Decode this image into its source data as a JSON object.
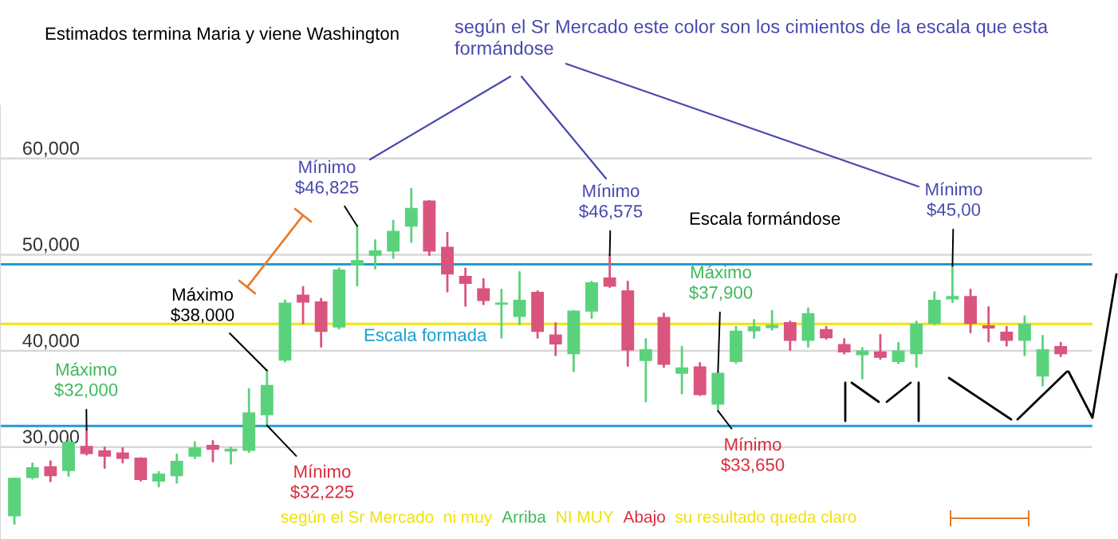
{
  "chart_data": {
    "type": "candlestick",
    "title": "Estimados termina Maria y viene Washington",
    "categories": [
      null,
      null,
      null,
      null,
      null,
      null,
      null,
      null,
      null,
      null,
      null,
      null,
      null,
      null,
      null,
      null,
      null,
      null,
      null,
      null,
      null,
      null,
      null,
      null,
      null,
      null,
      null,
      null,
      null,
      null,
      null,
      null,
      null,
      null,
      null,
      null,
      null,
      null,
      null,
      null,
      null,
      null,
      null,
      null,
      null,
      null,
      null,
      null,
      null,
      null,
      null,
      null,
      null,
      null,
      null,
      null,
      null,
      null,
      null
    ],
    "ohlc": [
      [
        22870,
        26740,
        22040,
        26740
      ],
      [
        26850,
        28290,
        26740,
        27850
      ],
      [
        27950,
        28510,
        26460,
        27020
      ],
      [
        27570,
        30720,
        27020,
        30500
      ],
      [
        30060,
        31820,
        29230,
        29340
      ],
      [
        29610,
        29940,
        27850,
        29060
      ],
      [
        29390,
        29890,
        28400,
        28840
      ],
      [
        28840,
        28840,
        26520,
        26630
      ],
      [
        26460,
        27400,
        25910,
        27180
      ],
      [
        27020,
        29230,
        26300,
        28510
      ],
      [
        29060,
        30500,
        28840,
        29890
      ],
      [
        30170,
        30610,
        28510,
        29780
      ],
      [
        29610,
        29940,
        28290,
        29780
      ],
      [
        29670,
        36020,
        29500,
        33540
      ],
      [
        33370,
        37960,
        32260,
        36410
      ],
      [
        39060,
        45250,
        38900,
        44970
      ],
      [
        45800,
        46630,
        42870,
        45080
      ],
      [
        45080,
        45410,
        40440,
        42040
      ],
      [
        42490,
        48560,
        42320,
        48400
      ],
      [
        48950,
        52980,
        46800,
        49390
      ],
      [
        49950,
        51490,
        48560,
        50390
      ],
      [
        50390,
        53540,
        49670,
        52430
      ],
      [
        52980,
        56850,
        51330,
        54810
      ],
      [
        55580,
        55580,
        49950,
        50390
      ],
      [
        50770,
        52270,
        46190,
        48010
      ],
      [
        47740,
        48560,
        44700,
        47020
      ],
      [
        46460,
        47460,
        44860,
        45250
      ],
      [
        44860,
        46350,
        41380,
        44970
      ],
      [
        43590,
        48180,
        42760,
        45250
      ],
      [
        46080,
        46190,
        41380,
        42040
      ],
      [
        41660,
        42870,
        39560,
        40720
      ],
      [
        39720,
        44140,
        37900,
        44140
      ],
      [
        44140,
        47180,
        43430,
        47070
      ],
      [
        47570,
        49950,
        46630,
        46740
      ],
      [
        46240,
        47180,
        38450,
        40110
      ],
      [
        39010,
        41220,
        34750,
        40110
      ],
      [
        43480,
        43870,
        38340,
        38620
      ],
      [
        37680,
        40440,
        35580,
        38230
      ],
      [
        38340,
        38730,
        35410,
        35470
      ],
      [
        34480,
        37680,
        33760,
        37680
      ],
      [
        38900,
        42490,
        38780,
        42040
      ],
      [
        42100,
        43200,
        41380,
        42490
      ],
      [
        42430,
        44140,
        42210,
        42650
      ],
      [
        42930,
        43040,
        40110,
        41100
      ],
      [
        41100,
        44420,
        40440,
        43870
      ],
      [
        42210,
        42490,
        41270,
        41380
      ],
      [
        40660,
        41220,
        39720,
        39890
      ],
      [
        39610,
        40280,
        37130,
        40000
      ],
      [
        39890,
        41660,
        39170,
        39340
      ],
      [
        38900,
        40830,
        38730,
        40000
      ],
      [
        39720,
        43040,
        38340,
        42760
      ],
      [
        42870,
        46080,
        42760,
        45250
      ],
      [
        45410,
        48840,
        45080,
        45640
      ],
      [
        45640,
        46350,
        41930,
        42870
      ],
      [
        42600,
        44530,
        41000,
        42380
      ],
      [
        41930,
        42490,
        40550,
        41100
      ],
      [
        41100,
        43590,
        39560,
        42760
      ],
      [
        37400,
        41550,
        36410,
        40110
      ],
      [
        40440,
        40830,
        39450,
        39720
      ]
    ],
    "colors": [
      "#5ad27c",
      "#5ad27c",
      "#d9557d",
      "#5ad27c",
      "#d9557d",
      "#d9557d",
      "#d9557d",
      "#d9557d",
      "#5ad27c",
      "#5ad27c",
      "#5ad27c",
      "#d9557d",
      "#5ad27c",
      "#5ad27c",
      "#5ad27c",
      "#5ad27c",
      "#d9557d",
      "#d9557d",
      "#5ad27c",
      "#5ad27c",
      "#5ad27c",
      "#5ad27c",
      "#5ad27c",
      "#d9557d",
      "#d9557d",
      "#d9557d",
      "#d9557d",
      "#5ad27c",
      "#5ad27c",
      "#d9557d",
      "#d9557d",
      "#5ad27c",
      "#5ad27c",
      "#d9557d",
      "#d9557d",
      "#5ad27c",
      "#d9557d",
      "#5ad27c",
      "#d9557d",
      "#5ad27c",
      "#5ad27c",
      "#5ad27c",
      "#5ad27c",
      "#d9557d",
      "#5ad27c",
      "#d9557d",
      "#d9557d",
      "#5ad27c",
      "#d9557d",
      "#5ad27c",
      "#5ad27c",
      "#5ad27c",
      "#5ad27c",
      "#d9557d",
      "#d9557d",
      "#d9557d",
      "#5ad27c",
      "#5ad27c",
      "#d9557d"
    ],
    "ylim": [
      20500,
      65500
    ],
    "yticks": [
      {
        "value": 30000,
        "label": "30,000"
      },
      {
        "value": 40000,
        "label": "40,000"
      },
      {
        "value": 50000,
        "label": "50,000"
      },
      {
        "value": 60000,
        "label": "60,000"
      }
    ],
    "grid": "y",
    "tick_labels": "y",
    "ref_lines": [
      {
        "axis": "y",
        "value": 49000,
        "color": "#1f9bd0"
      },
      {
        "axis": "y",
        "value": 42800,
        "color": "#f2e400"
      },
      {
        "axis": "y",
        "value": 32200,
        "color": "#1f9bd0"
      }
    ],
    "annotations": [
      "según el Sr Mercado este color son los cimientos de la escala que esta formándose",
      "Mínimo\n$46,825",
      "Mínimo\n$46,575",
      "Mínimo\n$45,00",
      "Máximo\n$38,000",
      "Máximo\n$32,000",
      "Mínimo\n$32,225",
      "Máximo\n$37,900",
      "Mínimo\n$33,650",
      "Escala formada",
      "Escala formándose",
      "según el Sr Mercado  ni muy",
      "Arriba",
      "NI MUY",
      "Abajo",
      "su resultado queda claro"
    ]
  }
}
